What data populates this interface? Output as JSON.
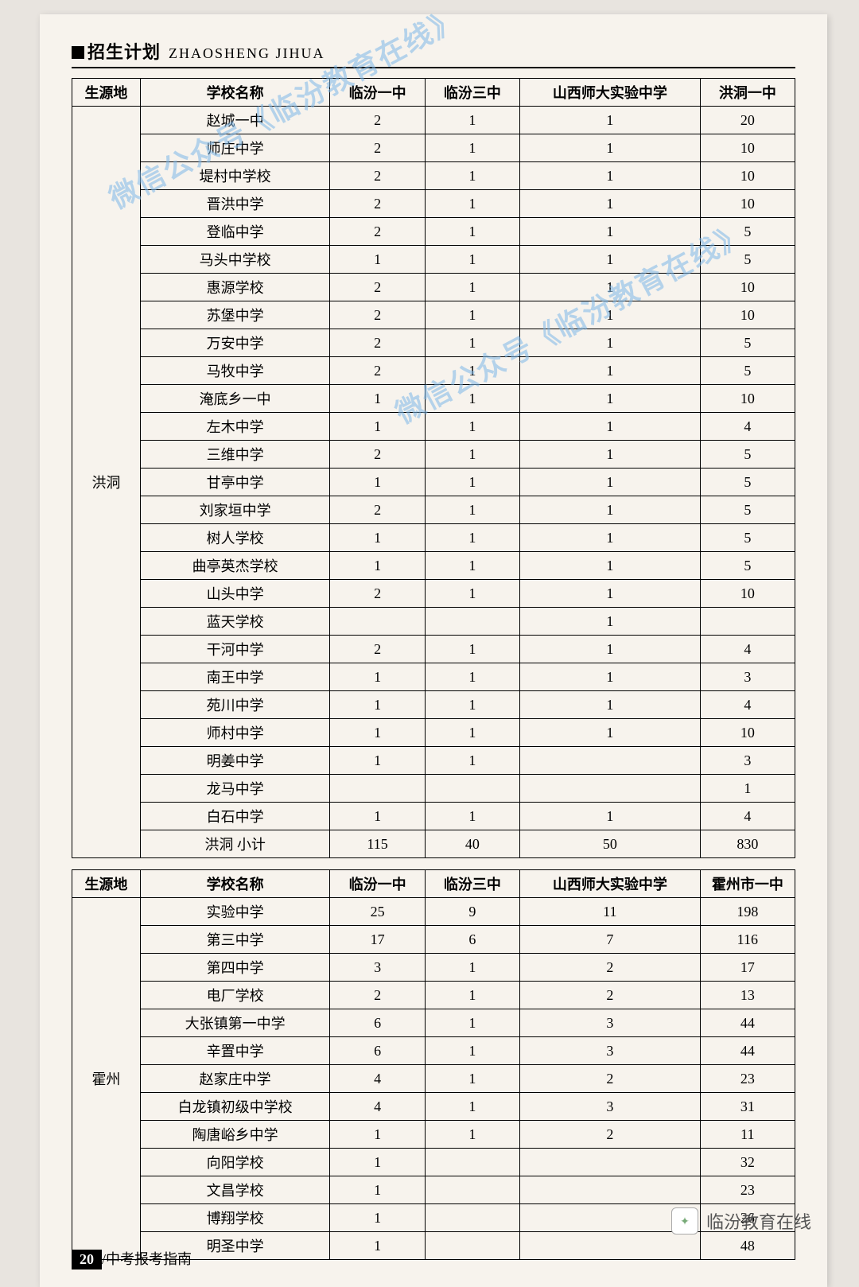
{
  "header": {
    "title": "招生计划",
    "subtitle": "ZHAOSHENG JIHUA"
  },
  "watermark_text": "微信公众号《临汾教育在线》",
  "table1": {
    "columns": [
      "生源地",
      "学校名称",
      "临汾一中",
      "临汾三中",
      "山西师大实验中学",
      "洪洞一中"
    ],
    "region": "洪洞",
    "rows": [
      [
        "赵城一中",
        "2",
        "1",
        "1",
        "20"
      ],
      [
        "师庄中学",
        "2",
        "1",
        "1",
        "10"
      ],
      [
        "堤村中学校",
        "2",
        "1",
        "1",
        "10"
      ],
      [
        "晋洪中学",
        "2",
        "1",
        "1",
        "10"
      ],
      [
        "登临中学",
        "2",
        "1",
        "1",
        "5"
      ],
      [
        "马头中学校",
        "1",
        "1",
        "1",
        "5"
      ],
      [
        "惠源学校",
        "2",
        "1",
        "1",
        "10"
      ],
      [
        "苏堡中学",
        "2",
        "1",
        "1",
        "10"
      ],
      [
        "万安中学",
        "2",
        "1",
        "1",
        "5"
      ],
      [
        "马牧中学",
        "2",
        "1",
        "1",
        "5"
      ],
      [
        "淹底乡一中",
        "1",
        "1",
        "1",
        "10"
      ],
      [
        "左木中学",
        "1",
        "1",
        "1",
        "4"
      ],
      [
        "三维中学",
        "2",
        "1",
        "1",
        "5"
      ],
      [
        "甘亭中学",
        "1",
        "1",
        "1",
        "5"
      ],
      [
        "刘家垣中学",
        "2",
        "1",
        "1",
        "5"
      ],
      [
        "树人学校",
        "1",
        "1",
        "1",
        "5"
      ],
      [
        "曲亭英杰学校",
        "1",
        "1",
        "1",
        "5"
      ],
      [
        "山头中学",
        "2",
        "1",
        "1",
        "10"
      ],
      [
        "蓝天学校",
        "",
        "",
        "1",
        ""
      ],
      [
        "干河中学",
        "2",
        "1",
        "1",
        "4"
      ],
      [
        "南王中学",
        "1",
        "1",
        "1",
        "3"
      ],
      [
        "苑川中学",
        "1",
        "1",
        "1",
        "4"
      ],
      [
        "师村中学",
        "1",
        "1",
        "1",
        "10"
      ],
      [
        "明姜中学",
        "1",
        "1",
        "",
        "3"
      ],
      [
        "龙马中学",
        "",
        "",
        "",
        "1"
      ],
      [
        "白石中学",
        "1",
        "1",
        "1",
        "4"
      ]
    ],
    "subtotal": [
      "洪洞 小计",
      "115",
      "40",
      "50",
      "830"
    ]
  },
  "table2": {
    "columns": [
      "生源地",
      "学校名称",
      "临汾一中",
      "临汾三中",
      "山西师大实验中学",
      "霍州市一中"
    ],
    "region": "霍州",
    "rows": [
      [
        "实验中学",
        "25",
        "9",
        "11",
        "198"
      ],
      [
        "第三中学",
        "17",
        "6",
        "7",
        "116"
      ],
      [
        "第四中学",
        "3",
        "1",
        "2",
        "17"
      ],
      [
        "电厂学校",
        "2",
        "1",
        "2",
        "13"
      ],
      [
        "大张镇第一中学",
        "6",
        "1",
        "3",
        "44"
      ],
      [
        "辛置中学",
        "6",
        "1",
        "3",
        "44"
      ],
      [
        "赵家庄中学",
        "4",
        "1",
        "2",
        "23"
      ],
      [
        "白龙镇初级中学校",
        "4",
        "1",
        "3",
        "31"
      ],
      [
        "陶唐峪乡中学",
        "1",
        "1",
        "2",
        "11"
      ],
      [
        "向阳学校",
        "1",
        "",
        "",
        "32"
      ],
      [
        "文昌学校",
        "1",
        "",
        "",
        "23"
      ],
      [
        "博翔学校",
        "1",
        "",
        "",
        "26"
      ],
      [
        "明圣中学",
        "1",
        "",
        "",
        "48"
      ]
    ]
  },
  "footer": {
    "page": "20",
    "label": "/中考报考指南"
  },
  "attribution": "临汾教育在线"
}
